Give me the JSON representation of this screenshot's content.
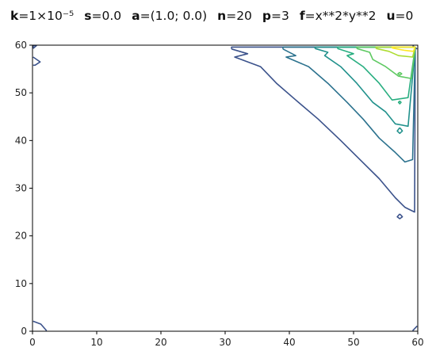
{
  "title": {
    "parts": [
      {
        "key": "k",
        "value": "=1×10⁻⁵"
      },
      {
        "key": "s",
        "value": "=0.0"
      },
      {
        "key": "a",
        "value": "=(1.0; 0.0)"
      },
      {
        "key": "n",
        "value": "=20"
      },
      {
        "key": "p",
        "value": "=3"
      },
      {
        "key": "f",
        "value": "=x**2*y**2"
      },
      {
        "key": "u",
        "value": "=0"
      }
    ]
  },
  "chart_data": {
    "type": "contour",
    "function": "x**2*y**2",
    "colormap": "viridis",
    "xlim": [
      0,
      60
    ],
    "ylim": [
      0,
      60
    ],
    "xticks": [
      "0",
      "10",
      "20",
      "30",
      "40",
      "50",
      "60"
    ],
    "yticks": [
      "0",
      "10",
      "20",
      "30",
      "40",
      "50",
      "60"
    ],
    "grid": false,
    "legend": false,
    "contours": [
      {
        "level_index": 1,
        "color": "#3b528b",
        "points": [
          [
            31,
            59.2
          ],
          [
            33.5,
            58.2
          ],
          [
            31.5,
            57.5
          ],
          [
            35.5,
            55.5
          ],
          [
            38,
            52
          ],
          [
            41,
            48.5
          ],
          [
            44.5,
            44.5
          ],
          [
            48,
            40
          ],
          [
            51,
            36
          ],
          [
            54,
            32
          ],
          [
            56.5,
            28
          ],
          [
            58,
            26
          ],
          [
            59.5,
            25
          ],
          [
            59.6,
            59.6
          ],
          [
            31,
            59.6
          ],
          [
            31,
            59.2
          ]
        ]
      },
      {
        "level_index": 1,
        "color": "#3b528b",
        "points": [
          [
            57.2,
            24.6
          ],
          [
            56.8,
            24
          ],
          [
            57.2,
            23.6
          ],
          [
            57.6,
            24
          ],
          [
            57.2,
            24.6
          ]
        ]
      },
      {
        "level_index": 1,
        "color": "#3b528b",
        "points": [
          [
            0.1,
            59.3
          ],
          [
            0.6,
            59.9
          ],
          [
            0.1,
            59.9
          ],
          [
            0.1,
            59.3
          ]
        ]
      },
      {
        "level_index": 1,
        "color": "#3b528b",
        "points": [
          [
            0.1,
            57.5
          ],
          [
            1.2,
            56.5
          ],
          [
            0.4,
            55.8
          ],
          [
            0.1,
            55.8
          ]
        ]
      },
      {
        "level_index": 1,
        "color": "#3b528b",
        "points": [
          [
            0.1,
            2.1
          ],
          [
            1.3,
            1.5
          ],
          [
            2.2,
            0.1
          ]
        ]
      },
      {
        "level_index": 1,
        "color": "#3b528b",
        "points": [
          [
            59.2,
            0.1
          ],
          [
            59.9,
            1.1
          ]
        ]
      },
      {
        "level_index": 1,
        "color": "#3b528b",
        "points": [
          [
            59.2,
            59.9
          ],
          [
            59.9,
            59.2
          ]
        ]
      },
      {
        "level_index": 2,
        "color": "#2c728e",
        "points": [
          [
            39,
            59.2
          ],
          [
            41,
            57.8
          ],
          [
            39.5,
            57.5
          ],
          [
            43,
            55.5
          ],
          [
            46,
            52
          ],
          [
            49,
            48
          ],
          [
            51.5,
            44.5
          ],
          [
            54,
            40.5
          ],
          [
            56.5,
            37.5
          ],
          [
            58,
            35.5
          ],
          [
            59.2,
            36
          ],
          [
            59.6,
            59.6
          ],
          [
            39,
            59.6
          ],
          [
            39,
            59.2
          ]
        ]
      },
      {
        "level_index": 3,
        "color": "#21918c",
        "points": [
          [
            44,
            59.3
          ],
          [
            46,
            58.5
          ],
          [
            45.5,
            57.8
          ],
          [
            48,
            55.5
          ],
          [
            50.5,
            52
          ],
          [
            53,
            48
          ],
          [
            55,
            46
          ],
          [
            56.5,
            43.5
          ],
          [
            58.5,
            43
          ],
          [
            59.6,
            59.6
          ],
          [
            44,
            59.6
          ],
          [
            44,
            59.3
          ]
        ]
      },
      {
        "level_index": 3,
        "color": "#21918c",
        "points": [
          [
            57.2,
            42.7
          ],
          [
            56.8,
            42
          ],
          [
            57.2,
            41.5
          ],
          [
            57.6,
            42
          ],
          [
            57.2,
            42.7
          ]
        ]
      },
      {
        "level_index": 4,
        "color": "#28ae80",
        "points": [
          [
            47.5,
            59.3
          ],
          [
            50,
            58.2
          ],
          [
            49,
            57.8
          ],
          [
            51.5,
            55.5
          ],
          [
            54,
            52
          ],
          [
            56,
            48.5
          ],
          [
            58.5,
            49
          ],
          [
            59.6,
            59.6
          ],
          [
            47.5,
            59.6
          ],
          [
            47.5,
            59.3
          ]
        ]
      },
      {
        "level_index": 4,
        "color": "#28ae80",
        "points": [
          [
            57.2,
            48.3
          ],
          [
            57,
            48
          ],
          [
            57.2,
            47.7
          ],
          [
            57.4,
            48
          ],
          [
            57.2,
            48.3
          ]
        ]
      },
      {
        "level_index": 5,
        "color": "#5ec962",
        "points": [
          [
            50.5,
            59.3
          ],
          [
            52.5,
            58.5
          ],
          [
            53,
            57
          ],
          [
            55,
            55.5
          ],
          [
            57,
            53.5
          ],
          [
            59,
            53
          ],
          [
            59.6,
            59.6
          ],
          [
            50.5,
            59.6
          ],
          [
            50.5,
            59.3
          ]
        ]
      },
      {
        "level_index": 5,
        "color": "#5ec962",
        "points": [
          [
            57.2,
            54.3
          ],
          [
            56.9,
            54
          ],
          [
            57.2,
            53.7
          ],
          [
            57.5,
            54
          ],
          [
            57.2,
            54.3
          ]
        ]
      },
      {
        "level_index": 6,
        "color": "#addc30",
        "points": [
          [
            53.5,
            59.3
          ],
          [
            55.5,
            58.7
          ],
          [
            57,
            57.8
          ],
          [
            59.2,
            57.5
          ],
          [
            59.6,
            59.6
          ],
          [
            53.5,
            59.6
          ],
          [
            53.5,
            59.3
          ]
        ]
      },
      {
        "level_index": 7,
        "color": "#fde725",
        "points": [
          [
            56,
            59.4
          ],
          [
            58,
            58.9
          ],
          [
            59.3,
            58.7
          ],
          [
            59.6,
            59.6
          ],
          [
            56,
            59.6
          ],
          [
            56,
            59.4
          ]
        ]
      }
    ]
  }
}
